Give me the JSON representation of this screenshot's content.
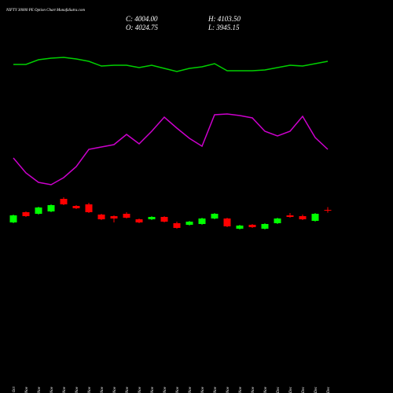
{
  "chart_data": {
    "type": "candlestick",
    "title": "NIFTY 30000  PE Option  Chart MunafaSutra.com",
    "header": [
      "C: 4004.00",
      "H: 4103.50",
      "O: 4024.75",
      "L: 3945.15"
    ],
    "categories": [
      "31 Oct",
      "01 Nov",
      "04 Nov",
      "05 Nov",
      "06 Nov",
      "07 Nov",
      "08 Nov",
      "11 Nov",
      "12 Nov",
      "13 Nov",
      "14 Nov",
      "18 Nov",
      "19 Nov",
      "20 Nov",
      "21 Nov",
      "22 Nov",
      "25 Nov",
      "26 Nov",
      "27 Nov",
      "28 Nov",
      "29 Nov",
      "02 Dec",
      "03 Dec",
      "04 Dec",
      "05 Dec",
      "06 Dec"
    ],
    "open": [
      3674,
      3960,
      3916,
      3982,
      4334,
      4136,
      4180,
      3894,
      3850,
      3916,
      3762,
      3762,
      3828,
      3652,
      3608,
      3630,
      3784,
      3784,
      3498,
      3608,
      3498,
      3652,
      3872,
      3850,
      3718,
      4024.75
    ],
    "high": [
      3894,
      3982,
      4114,
      4180,
      4378,
      4158,
      4224,
      3916,
      3872,
      3960,
      3784,
      3850,
      3850,
      3696,
      3718,
      3806,
      3938,
      3806,
      3608,
      3630,
      3652,
      3806,
      3938,
      3894,
      3938,
      4103.5
    ],
    "low": [
      3652,
      3828,
      3894,
      3960,
      4158,
      4048,
      3938,
      3740,
      3674,
      3784,
      3652,
      3740,
      3674,
      3498,
      3586,
      3608,
      3762,
      3542,
      3476,
      3520,
      3476,
      3630,
      3806,
      3740,
      3696,
      3945.15
    ],
    "close": [
      3872,
      3850,
      4092,
      4158,
      4180,
      4070,
      3960,
      3762,
      3784,
      3806,
      3674,
      3828,
      3696,
      3520,
      3696,
      3784,
      3916,
      3564,
      3586,
      3542,
      3630,
      3784,
      3828,
      3762,
      3916,
      4004
    ],
    "up_color": "#00ff00",
    "down_color": "#ff0000",
    "ylim": [
      3000,
      6000
    ],
    "y2lim": [
      0,
      100
    ],
    "lines": [
      {
        "color": "#00d000",
        "axis": "y2",
        "values": [
          89,
          89,
          92,
          93,
          93.5,
          92.5,
          91,
          88,
          88.5,
          88.5,
          87,
          88.5,
          86.5,
          84.5,
          86.5,
          87.5,
          89.5,
          85,
          85,
          85,
          85.5,
          87,
          88.5,
          88,
          89.5,
          91
        ]
      },
      {
        "color": "#cc00cc",
        "axis": "y2",
        "values": [
          29.5,
          20,
          14,
          12.5,
          17,
          24,
          35,
          36.5,
          38,
          44.5,
          38.5,
          46.5,
          55.5,
          48.5,
          42,
          37,
          57,
          57.5,
          56.5,
          55,
          46.5,
          43.5,
          46.5,
          56,
          42.5,
          35
        ]
      }
    ]
  }
}
